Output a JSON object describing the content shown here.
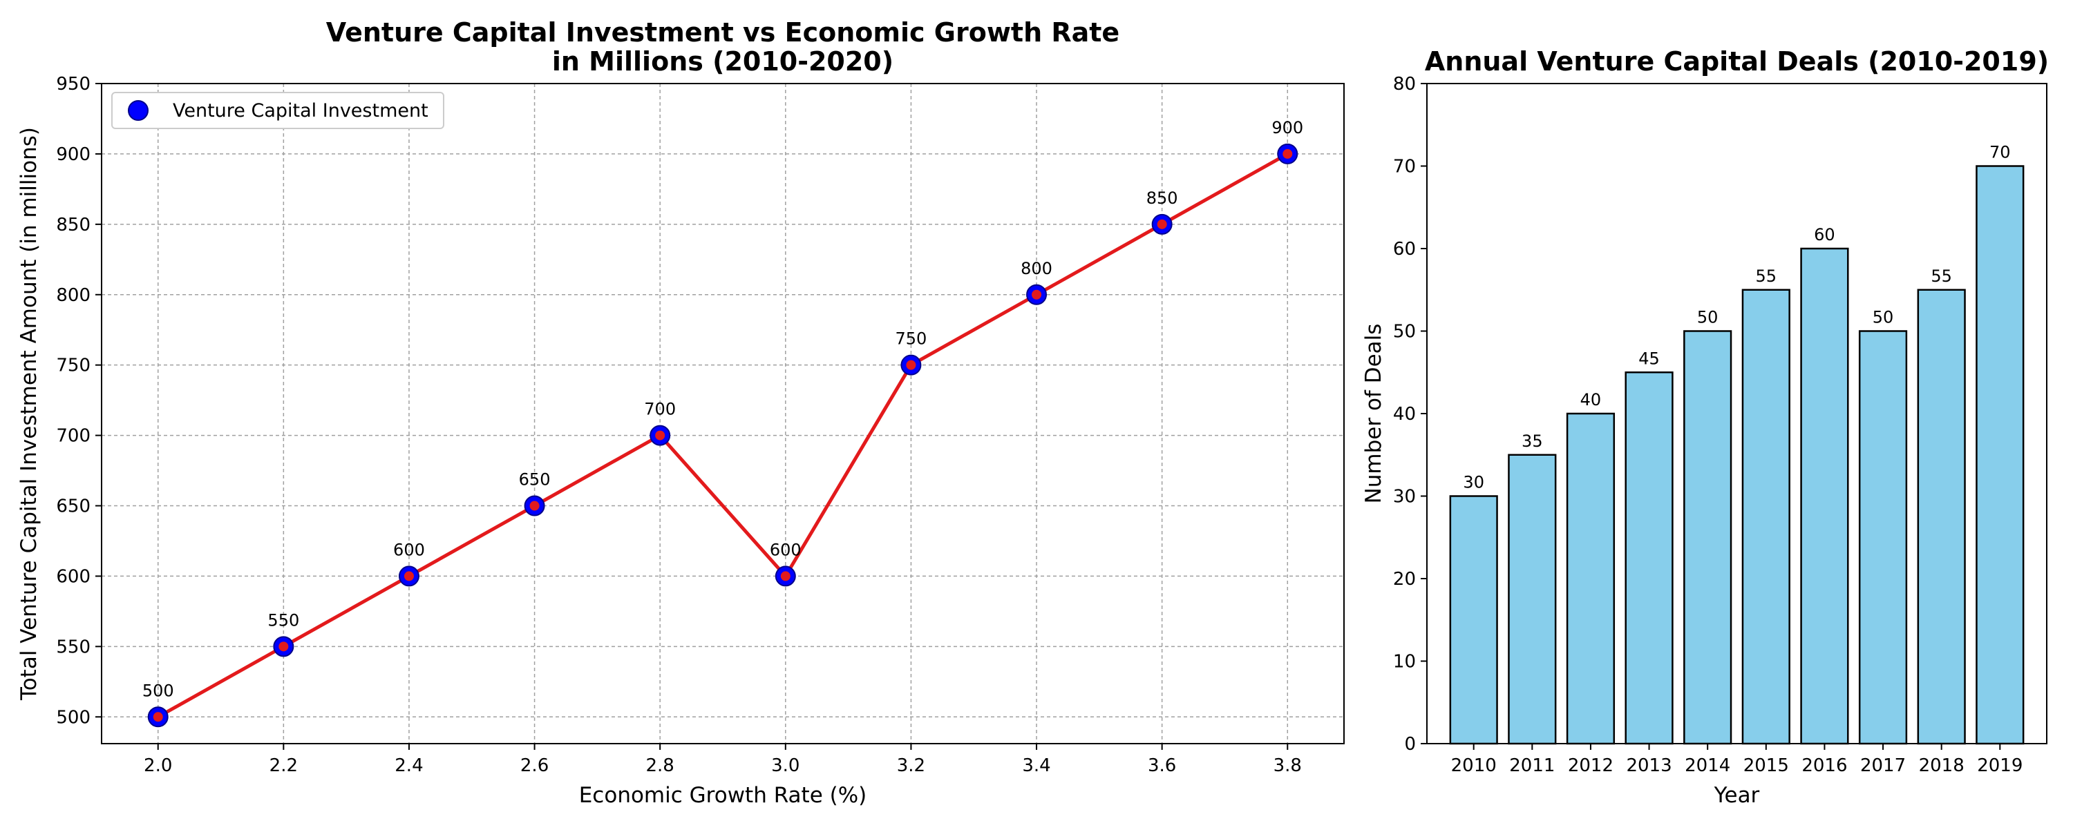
{
  "chart_data": [
    {
      "type": "scatter",
      "title_lines": [
        "Venture Capital Investment vs Economic Growth Rate",
        "in Millions (2010-2020)"
      ],
      "xlabel": "Economic Growth Rate (%)",
      "ylabel": "Total Venture Capital Investment Amount (in millions)",
      "xlim": [
        1.91,
        3.89
      ],
      "ylim": [
        481,
        950
      ],
      "xticks": [
        "2.0",
        "2.2",
        "2.4",
        "2.6",
        "2.8",
        "3.0",
        "3.2",
        "3.4",
        "3.6",
        "3.8"
      ],
      "yticks": [
        "500",
        "550",
        "600",
        "650",
        "700",
        "750",
        "800",
        "850",
        "900",
        "950"
      ],
      "grid": true,
      "legend_position": "top-left",
      "series": [
        {
          "name": "Venture Capital Investment",
          "x": [
            2.0,
            2.2,
            2.4,
            2.6,
            2.8,
            3.0,
            3.2,
            3.4,
            3.6,
            3.8
          ],
          "y": [
            500,
            550,
            600,
            650,
            700,
            600,
            750,
            800,
            850,
            900
          ],
          "data_labels": [
            "500",
            "550",
            "600",
            "650",
            "700",
            "600",
            "750",
            "800",
            "850",
            "900"
          ],
          "marker_color": "#0000ff",
          "marker_edge_color": "#00008b",
          "line_color": "#e31a1c",
          "line_marker_color": "#e31a1c"
        }
      ]
    },
    {
      "type": "bar",
      "title": "Annual Venture Capital Deals (2010-2019)",
      "xlabel": "Year",
      "ylabel": "Number of Deals",
      "ylim": [
        0,
        80
      ],
      "yticks": [
        "0",
        "10",
        "20",
        "30",
        "40",
        "50",
        "60",
        "70",
        "80"
      ],
      "categories": [
        "2010",
        "2011",
        "2012",
        "2013",
        "2014",
        "2015",
        "2016",
        "2017",
        "2018",
        "2019"
      ],
      "values": [
        30,
        35,
        40,
        45,
        50,
        55,
        60,
        50,
        55,
        70
      ],
      "data_labels": [
        "30",
        "35",
        "40",
        "45",
        "50",
        "55",
        "60",
        "50",
        "55",
        "70"
      ],
      "bar_color": "#87ceeb",
      "edge_color": "#000000",
      "grid": false
    }
  ]
}
